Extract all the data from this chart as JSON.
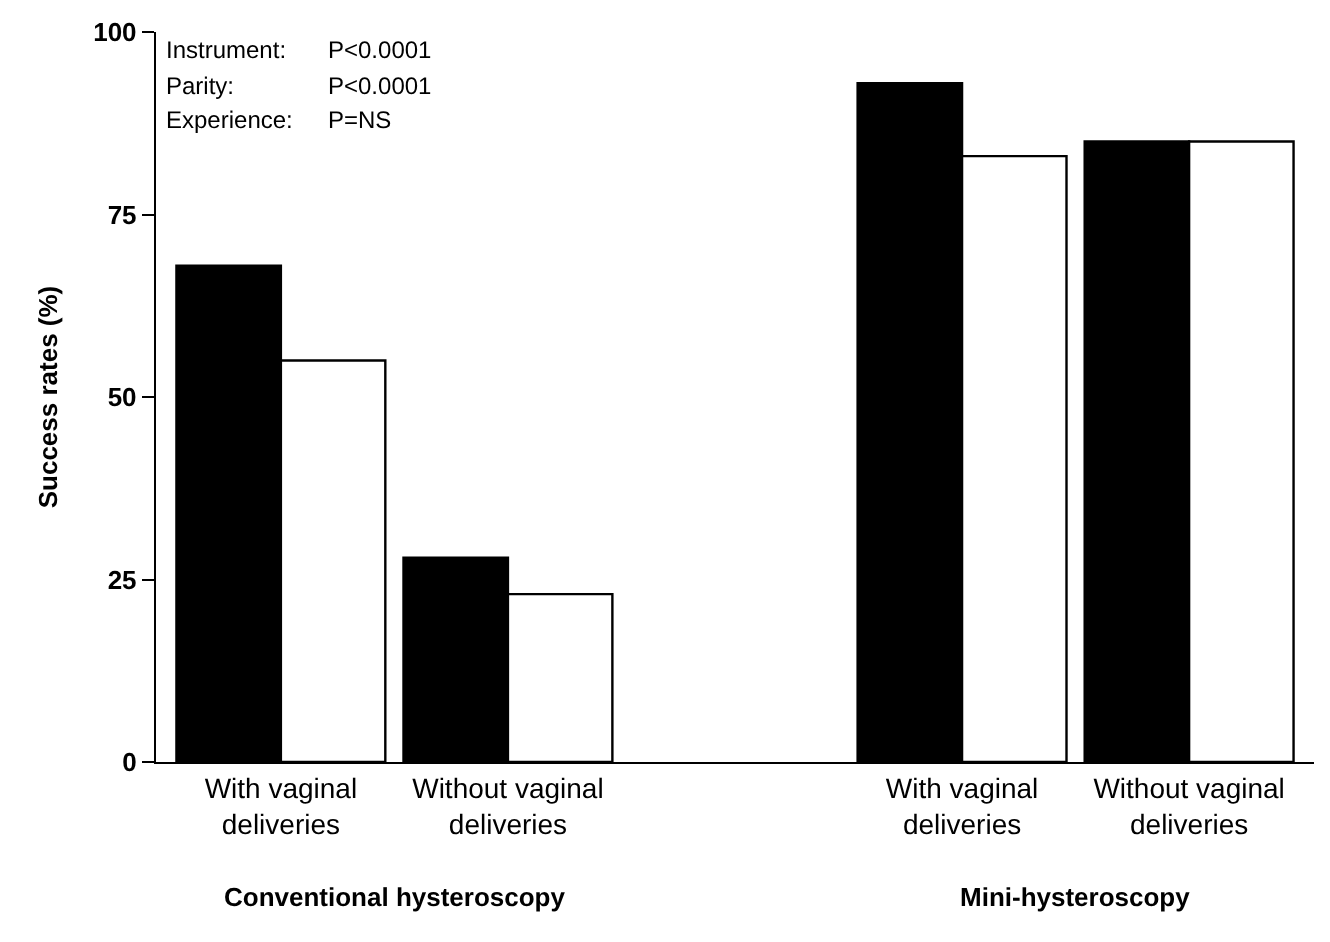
{
  "chart_data": {
    "type": "bar",
    "ylabel": "Success rates (%)",
    "categories": [
      "With vaginal\ndeliveries",
      "Without vaginal\ndeliveries",
      null,
      "With vaginal\ndeliveries",
      "Without vaginal\ndeliveries"
    ],
    "series": [
      {
        "color": "#000000",
        "values": [
          68,
          28,
          null,
          93,
          85
        ]
      },
      {
        "color": "#ffffff",
        "values": [
          55,
          23,
          null,
          83,
          85
        ]
      }
    ],
    "ylim": [
      0,
      100
    ],
    "yticks": [
      0,
      25,
      50,
      75,
      100
    ],
    "grid": false,
    "annotations": [
      "Instrument: P<0.0001",
      "Parity: P<0.0001",
      "Experience: P=NS",
      "Conventional hysteroscopy",
      "Mini-hysteroscopy"
    ]
  }
}
